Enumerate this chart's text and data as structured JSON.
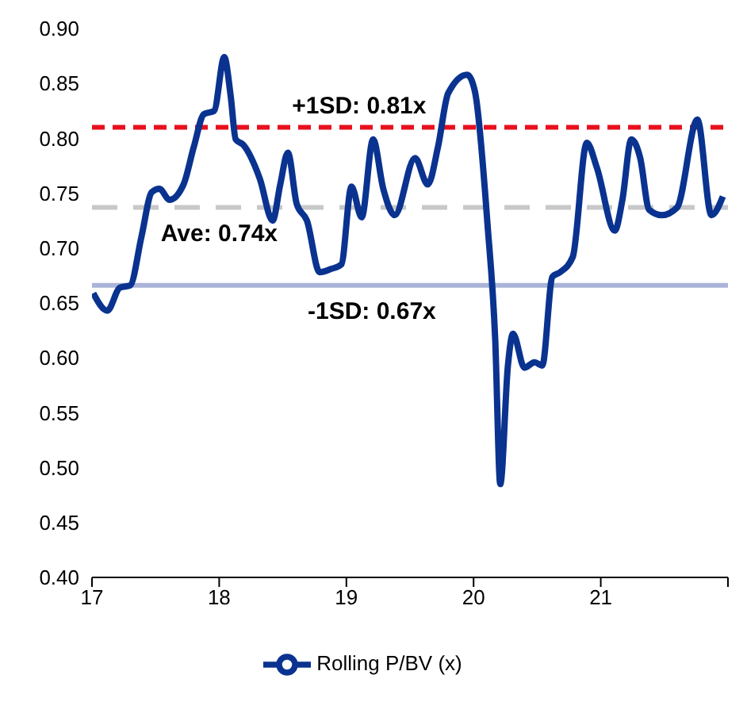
{
  "chart_data": {
    "type": "line",
    "x": [
      17.01,
      17.12,
      17.22,
      17.3,
      17.39,
      17.47,
      17.53,
      17.61,
      17.72,
      17.8,
      17.88,
      17.96,
      18.04,
      18.09,
      18.13,
      18.19,
      18.32,
      18.42,
      18.48,
      18.54,
      18.61,
      18.69,
      18.79,
      18.88,
      18.96,
      19.04,
      19.12,
      19.21,
      19.29,
      19.38,
      19.54,
      19.64,
      19.72,
      19.8,
      19.95,
      20.01,
      20.11,
      20.17,
      20.21,
      20.27,
      20.31,
      20.4,
      20.48,
      20.54,
      20.62,
      20.68,
      20.78,
      20.89,
      20.97,
      21.11,
      21.17,
      21.24,
      21.31,
      21.38,
      21.48,
      21.6,
      21.76,
      21.87,
      21.96
    ],
    "series": [
      {
        "name": "Rolling P/BV (x)",
        "color": "#0a3390",
        "values": [
          0.659,
          0.643,
          0.664,
          0.666,
          0.711,
          0.751,
          0.754,
          0.744,
          0.758,
          0.792,
          0.822,
          0.825,
          0.874,
          0.839,
          0.799,
          0.794,
          0.763,
          0.725,
          0.758,
          0.787,
          0.74,
          0.725,
          0.678,
          0.681,
          0.685,
          0.756,
          0.728,
          0.799,
          0.754,
          0.73,
          0.782,
          0.758,
          0.792,
          0.841,
          0.858,
          0.843,
          0.721,
          0.617,
          0.485,
          0.593,
          0.622,
          0.591,
          0.596,
          0.593,
          0.674,
          0.678,
          0.692,
          0.796,
          0.773,
          0.716,
          0.744,
          0.799,
          0.782,
          0.735,
          0.73,
          0.737,
          0.817,
          0.73,
          0.747
        ]
      }
    ],
    "xlim": [
      17,
      22
    ],
    "xticks": [
      17,
      18,
      19,
      20,
      21,
      {
        "value": 22,
        "label": null
      }
    ],
    "ylim": [
      0.4,
      0.9
    ],
    "yticks": [
      {
        "value": 0.4,
        "label": "0.40"
      },
      {
        "value": 0.45,
        "label": "0.45"
      },
      {
        "value": 0.5,
        "label": "0.50"
      },
      {
        "value": 0.55,
        "label": "0.55"
      },
      {
        "value": 0.6,
        "label": "0.60"
      },
      {
        "value": 0.65,
        "label": "0.65"
      },
      {
        "value": 0.7,
        "label": "0.70"
      },
      {
        "value": 0.75,
        "label": "0.75"
      },
      {
        "value": 0.8,
        "label": "0.80"
      },
      {
        "value": 0.85,
        "label": "0.85"
      },
      {
        "value": 0.9,
        "label": "0.90"
      }
    ],
    "ref_lines": [
      {
        "axis": "y",
        "value": 0.81,
        "label": "+1SD: 0.81x",
        "color": "#e8101c",
        "line_style": "dashed"
      },
      {
        "axis": "y",
        "value": 0.737,
        "label": "Ave: 0.74x",
        "color": "#c8c8c8",
        "line_style": "dashed"
      },
      {
        "axis": "y",
        "value": 0.666,
        "label": "-1SD: 0.67x",
        "color": "#aab4d8",
        "line_style": "solid"
      }
    ],
    "grid": false,
    "legend": "bottom",
    "marker": "none",
    "line_style": "solid"
  }
}
